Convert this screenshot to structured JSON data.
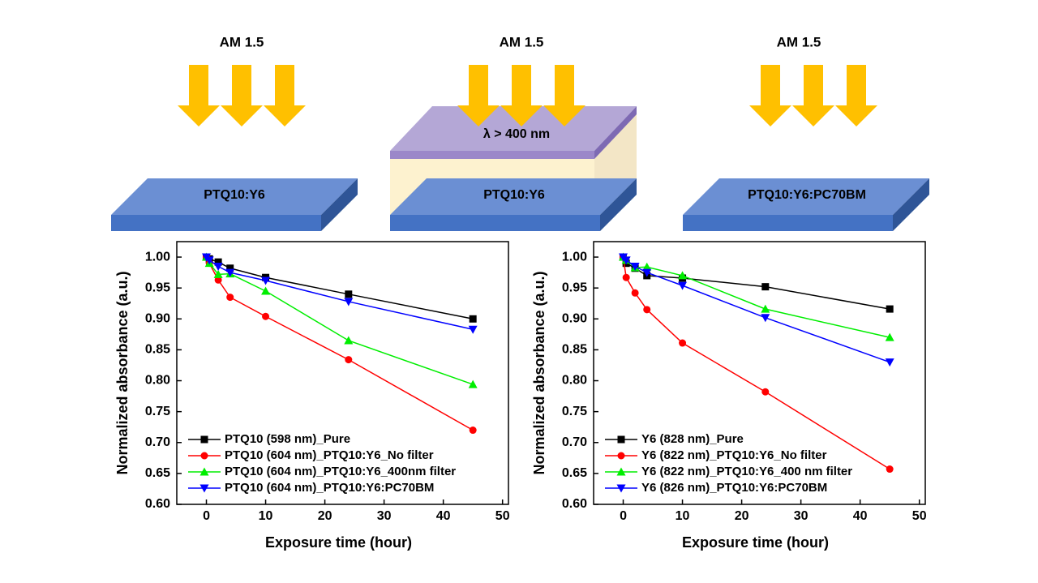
{
  "diagram": {
    "panels": [
      {
        "illumination": "AM 1.5",
        "sample": "PTQ10:Y6"
      },
      {
        "illumination": "AM 1.5",
        "filter": "λ > 400 nm",
        "sample": "PTQ10:Y6"
      },
      {
        "illumination": "AM 1.5",
        "sample": "PTQ10:Y6:PC70BM"
      }
    ]
  },
  "chart_data": [
    {
      "type": "line",
      "x_label": "Exposure time (hour)",
      "y_label": "Normalized absorbance (a.u.)",
      "x": [
        0,
        0.5,
        2,
        4,
        10,
        24,
        45
      ],
      "xlim": [
        -5,
        51
      ],
      "xticks": [
        0,
        10,
        20,
        30,
        40,
        50
      ],
      "ylim": [
        0.6,
        1.025
      ],
      "yticks": [
        {
          "value": 0.6,
          "label": "0.60"
        },
        0.65,
        {
          "value": 0.7,
          "label": "0.70"
        },
        0.75,
        {
          "value": 0.8,
          "label": "0.80"
        },
        0.85,
        {
          "value": 0.9,
          "label": "0.90"
        },
        0.95,
        {
          "value": 1,
          "label": "1.00"
        }
      ],
      "legend": "lower left",
      "series": [
        {
          "name": "PTQ10 (598 nm)_Pure",
          "color": "#000000",
          "marker": "square",
          "values": [
            1.0,
            0.997,
            0.992,
            0.982,
            0.967,
            0.94,
            0.9
          ]
        },
        {
          "name": "PTQ10 (604 nm)_PTQ10:Y6_No filter",
          "color": "#ff0000",
          "marker": "circle",
          "values": [
            1.0,
            0.99,
            0.963,
            0.935,
            0.904,
            0.834,
            0.72
          ]
        },
        {
          "name": "PTQ10 (604 nm)_PTQ10:Y6_400nm filter",
          "color": "#00ee00",
          "marker": "triangle-up",
          "values": [
            1.0,
            0.99,
            0.972,
            0.973,
            0.945,
            0.865,
            0.794
          ]
        },
        {
          "name": "PTQ10 (604 nm)_PTQ10:Y6:PC70BM",
          "color": "#0000ff",
          "marker": "triangle-down",
          "values": [
            1.0,
            0.995,
            0.985,
            0.975,
            0.962,
            0.928,
            0.883
          ]
        }
      ]
    },
    {
      "type": "line",
      "x_label": "Exposure time (hour)",
      "y_label": "Normalized absorbance (a.u.)",
      "x": [
        0,
        0.5,
        2,
        4,
        10,
        24,
        45
      ],
      "xlim": [
        -5,
        51
      ],
      "xticks": [
        0,
        10,
        20,
        30,
        40,
        50
      ],
      "ylim": [
        0.6,
        1.025
      ],
      "yticks": [
        {
          "value": 0.6,
          "label": "0.60"
        },
        0.65,
        {
          "value": 0.7,
          "label": "0.70"
        },
        0.75,
        {
          "value": 0.8,
          "label": "0.80"
        },
        0.85,
        {
          "value": 0.9,
          "label": "0.90"
        },
        0.95,
        {
          "value": 1,
          "label": "1.00"
        }
      ],
      "legend": "lower left",
      "series": [
        {
          "name": "Y6 (828 nm)_Pure",
          "color": "#000000",
          "marker": "square",
          "values": [
            1.0,
            0.99,
            0.982,
            0.97,
            0.966,
            0.952,
            0.916
          ]
        },
        {
          "name": "Y6 (822 nm)_PTQ10:Y6_No filter",
          "color": "#ff0000",
          "marker": "circle",
          "values": [
            1.0,
            0.967,
            0.942,
            0.915,
            0.861,
            0.782,
            0.657
          ]
        },
        {
          "name": "Y6 (822 nm)_PTQ10:Y6_400 nm filter",
          "color": "#00ee00",
          "marker": "triangle-up",
          "values": [
            1.0,
            0.995,
            0.983,
            0.984,
            0.97,
            0.916,
            0.87
          ]
        },
        {
          "name": "Y6 (826 nm)_PTQ10:Y6:PC70BM",
          "color": "#0000ff",
          "marker": "triangle-down",
          "values": [
            1.0,
            0.995,
            0.985,
            0.975,
            0.954,
            0.902,
            0.83
          ]
        }
      ]
    }
  ]
}
